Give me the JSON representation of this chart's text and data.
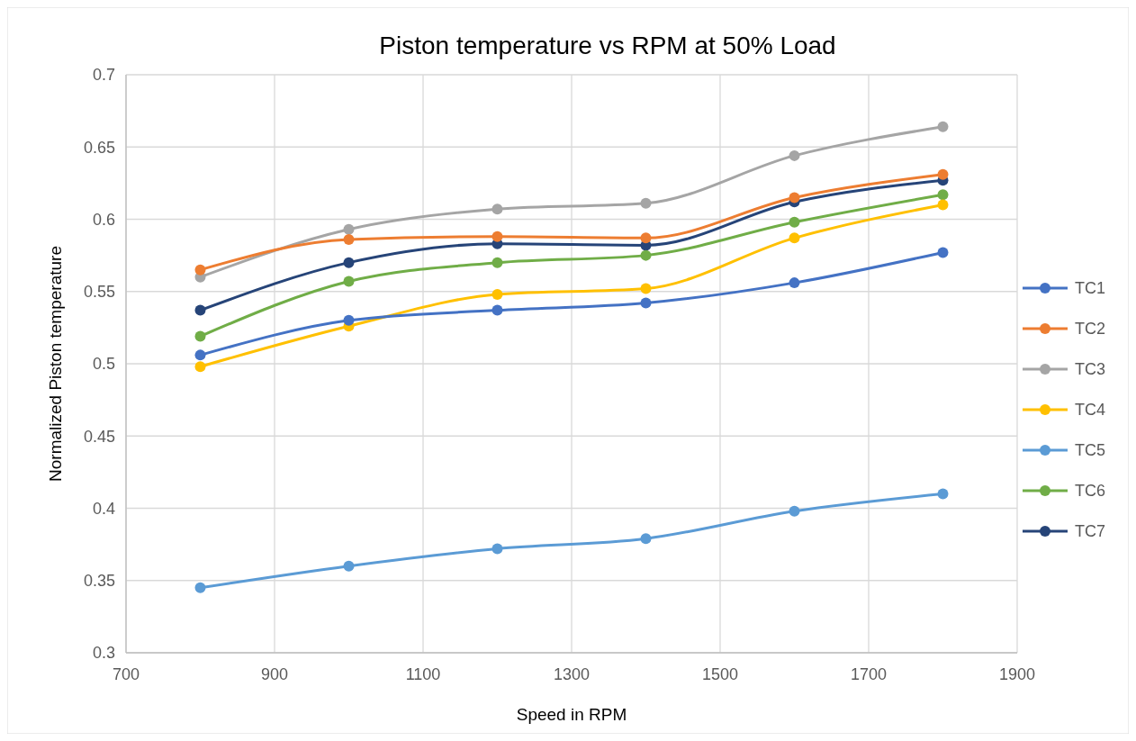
{
  "chart_data": {
    "type": "line",
    "title": "Piston temperature vs RPM at 50% Load",
    "xlabel": "Speed in RPM",
    "ylabel": "Normalized Piston temperature",
    "x": [
      800,
      1000,
      1200,
      1400,
      1600,
      1800
    ],
    "xlim": [
      700,
      1900
    ],
    "xticks": [
      700,
      900,
      1100,
      1300,
      1500,
      1700,
      1900
    ],
    "ylim": [
      0.3,
      0.7
    ],
    "yticks": [
      0.3,
      0.35,
      0.4,
      0.45,
      0.5,
      0.55,
      0.6,
      0.65,
      0.7
    ],
    "grid": true,
    "legend": "right",
    "marker": "circle",
    "line_style": "solid",
    "series": [
      {
        "name": "TC1",
        "color": "#4472c4",
        "values": [
          0.506,
          0.53,
          0.537,
          0.542,
          0.556,
          0.577
        ]
      },
      {
        "name": "TC2",
        "color": "#ed7d31",
        "values": [
          0.565,
          0.586,
          0.588,
          0.587,
          0.615,
          0.631
        ]
      },
      {
        "name": "TC3",
        "color": "#a5a5a5",
        "values": [
          0.56,
          0.593,
          0.607,
          0.611,
          0.644,
          0.664
        ]
      },
      {
        "name": "TC4",
        "color": "#ffc000",
        "values": [
          0.498,
          0.526,
          0.548,
          0.552,
          0.587,
          0.61
        ]
      },
      {
        "name": "TC5",
        "color": "#5b9bd5",
        "values": [
          0.345,
          0.36,
          0.372,
          0.379,
          0.398,
          0.41
        ]
      },
      {
        "name": "TC6",
        "color": "#70ad47",
        "values": [
          0.519,
          0.557,
          0.57,
          0.575,
          0.598,
          0.617
        ]
      },
      {
        "name": "TC7",
        "color": "#264478",
        "values": [
          0.537,
          0.57,
          0.583,
          0.582,
          0.612,
          0.627
        ]
      }
    ]
  }
}
